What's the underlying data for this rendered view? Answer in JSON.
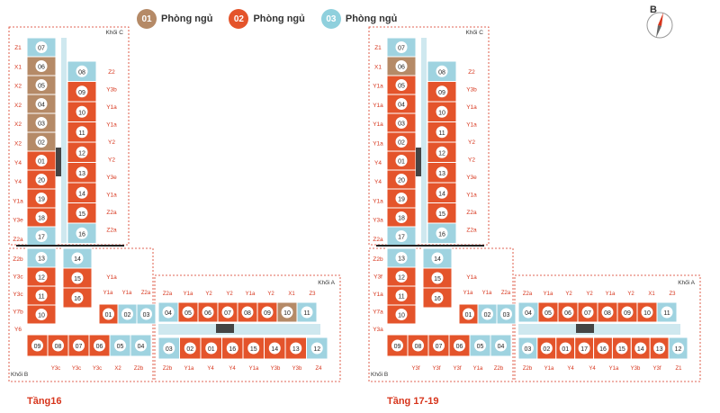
{
  "legend": [
    {
      "num": "01",
      "label": "Phòng ngủ",
      "color": "#b58a67"
    },
    {
      "num": "02",
      "label": "Phòng ngủ",
      "color": "#e4542b"
    },
    {
      "num": "03",
      "label": "Phòng ngủ",
      "color": "#8fd0dd"
    }
  ],
  "compass": {
    "label": "B"
  },
  "colors": {
    "orange": "#e4542b",
    "brown": "#b58a67",
    "blue": "#9fd3e0",
    "outline": "#d7351c",
    "core": "#444444"
  },
  "floors": [
    {
      "title": "Tầng16",
      "block_labels": {
        "c": "Khối C",
        "a": "Khối A",
        "b": "Khối B"
      },
      "left_labels": [
        "Z1",
        "X1",
        "X2",
        "X2",
        "X2",
        "X2",
        "Y4",
        "Y4",
        "Y1a",
        "Y3e",
        "Z2a",
        "Z2b",
        "Y3c",
        "Y3c",
        "Y7b",
        "Y6"
      ],
      "right_labels": [
        "Z2",
        "Y3b",
        "Y1a",
        "Y1a",
        "Y2",
        "Y2",
        "Y3e",
        "Y1a",
        "Z2a",
        "Z2a",
        "Y1a"
      ],
      "mid_labels": [
        "Y1a",
        "Y1a",
        "Z2a"
      ],
      "top_a_labels": [
        "Z2a",
        "Y1a",
        "Y2",
        "Y2",
        "Y1a",
        "Y2",
        "X1",
        "Z3"
      ],
      "bottom_b_labels": [
        "Y3c",
        "Y3c",
        "Y3c",
        "X2",
        "Z2b"
      ],
      "bottom_a_labels": [
        "Z2b",
        "Y1a",
        "Y4",
        "Y4",
        "Y1a",
        "Y3b",
        "Y3b",
        "Z4"
      ],
      "units_c_left": [
        {
          "n": "07",
          "t": "blue"
        },
        {
          "n": "06",
          "t": "brown"
        },
        {
          "n": "05",
          "t": "brown"
        },
        {
          "n": "04",
          "t": "brown"
        },
        {
          "n": "03",
          "t": "brown"
        },
        {
          "n": "02",
          "t": "brown"
        },
        {
          "n": "01",
          "t": "orange"
        },
        {
          "n": "20",
          "t": "orange"
        },
        {
          "n": "19",
          "t": "orange"
        },
        {
          "n": "18",
          "t": "orange"
        },
        {
          "n": "17",
          "t": "blue"
        }
      ],
      "units_c_right": [
        {
          "n": "08",
          "t": "blue"
        },
        {
          "n": "09",
          "t": "orange"
        },
        {
          "n": "10",
          "t": "orange"
        },
        {
          "n": "11",
          "t": "orange"
        },
        {
          "n": "12",
          "t": "orange"
        },
        {
          "n": "13",
          "t": "orange"
        },
        {
          "n": "14",
          "t": "orange"
        },
        {
          "n": "15",
          "t": "orange"
        },
        {
          "n": "16",
          "t": "blue"
        }
      ],
      "units_b_left": [
        {
          "n": "13",
          "t": "blue"
        },
        {
          "n": "12",
          "t": "orange"
        },
        {
          "n": "11",
          "t": "orange"
        },
        {
          "n": "10",
          "t": "orange"
        }
      ],
      "units_b_right": [
        {
          "n": "14",
          "t": "blue"
        },
        {
          "n": "15",
          "t": "orange"
        },
        {
          "n": "16",
          "t": "orange"
        }
      ],
      "units_b_bottom": [
        {
          "n": "09",
          "t": "orange"
        },
        {
          "n": "08",
          "t": "orange"
        },
        {
          "n": "07",
          "t": "orange"
        },
        {
          "n": "06",
          "t": "orange"
        },
        {
          "n": "05",
          "t": "blue"
        },
        {
          "n": "04",
          "t": "blue"
        }
      ],
      "units_b_mid": [
        {
          "n": "01",
          "t": "orange"
        },
        {
          "n": "02",
          "t": "blue"
        },
        {
          "n": "03",
          "t": "blue"
        }
      ],
      "units_a_top": [
        {
          "n": "04",
          "t": "blue"
        },
        {
          "n": "05",
          "t": "orange"
        },
        {
          "n": "06",
          "t": "orange"
        },
        {
          "n": "07",
          "t": "orange"
        },
        {
          "n": "08",
          "t": "orange"
        },
        {
          "n": "09",
          "t": "orange"
        },
        {
          "n": "10",
          "t": "brown"
        },
        {
          "n": "11",
          "t": "blue"
        }
      ],
      "units_a_bottom": [
        {
          "n": "03",
          "t": "blue"
        },
        {
          "n": "02",
          "t": "orange"
        },
        {
          "n": "01",
          "t": "orange"
        },
        {
          "n": "16",
          "t": "orange"
        },
        {
          "n": "15",
          "t": "orange"
        },
        {
          "n": "14",
          "t": "orange"
        },
        {
          "n": "13",
          "t": "orange"
        },
        {
          "n": "12",
          "t": "blue"
        }
      ]
    },
    {
      "title": "Tầng 17-19",
      "block_labels": {
        "c": "Khối C",
        "a": "Khối A",
        "b": "Khối B"
      },
      "left_labels": [
        "Z1",
        "X1",
        "Y1a",
        "Y1a",
        "Y1a",
        "Y1a",
        "Y4",
        "Y4",
        "Y1a",
        "Y3a",
        "Z2a",
        "Z2b",
        "Y3f",
        "Y1a",
        "Y7a",
        "Y3a"
      ],
      "right_labels": [
        "Z2",
        "Y3b",
        "Y1a",
        "Y1a",
        "Y2",
        "Y2",
        "Y3e",
        "Y1a",
        "Z2a",
        "Z2a",
        "Y1a"
      ],
      "mid_labels": [
        "Y1a",
        "Y1a",
        "Z2a"
      ],
      "top_a_labels": [
        "Z2a",
        "Y1a",
        "Y2",
        "Y2",
        "Y1a",
        "Y2",
        "X1",
        "Z3"
      ],
      "bottom_b_labels": [
        "Y3f",
        "Y3f",
        "Y3f",
        "Y1a",
        "Z2b"
      ],
      "bottom_a_labels": [
        "Z2b",
        "Y1a",
        "Y4",
        "Y4",
        "Y1a",
        "Y3b",
        "Y3f",
        "Z1"
      ],
      "units_c_left": [
        {
          "n": "07",
          "t": "blue"
        },
        {
          "n": "06",
          "t": "brown"
        },
        {
          "n": "05",
          "t": "orange"
        },
        {
          "n": "04",
          "t": "orange"
        },
        {
          "n": "03",
          "t": "orange"
        },
        {
          "n": "02",
          "t": "orange"
        },
        {
          "n": "01",
          "t": "orange"
        },
        {
          "n": "20",
          "t": "orange"
        },
        {
          "n": "19",
          "t": "orange"
        },
        {
          "n": "18",
          "t": "orange"
        },
        {
          "n": "17",
          "t": "blue"
        }
      ],
      "units_c_right": [
        {
          "n": "08",
          "t": "blue"
        },
        {
          "n": "09",
          "t": "orange"
        },
        {
          "n": "10",
          "t": "orange"
        },
        {
          "n": "11",
          "t": "orange"
        },
        {
          "n": "12",
          "t": "orange"
        },
        {
          "n": "13",
          "t": "orange"
        },
        {
          "n": "14",
          "t": "orange"
        },
        {
          "n": "15",
          "t": "orange"
        },
        {
          "n": "16",
          "t": "blue"
        }
      ],
      "units_b_left": [
        {
          "n": "13",
          "t": "blue"
        },
        {
          "n": "12",
          "t": "orange"
        },
        {
          "n": "11",
          "t": "orange"
        },
        {
          "n": "10",
          "t": "orange"
        }
      ],
      "units_b_right": [
        {
          "n": "14",
          "t": "blue"
        },
        {
          "n": "15",
          "t": "orange"
        },
        {
          "n": "16",
          "t": "orange"
        }
      ],
      "units_b_bottom": [
        {
          "n": "09",
          "t": "orange"
        },
        {
          "n": "08",
          "t": "orange"
        },
        {
          "n": "07",
          "t": "orange"
        },
        {
          "n": "06",
          "t": "orange"
        },
        {
          "n": "05",
          "t": "blue"
        },
        {
          "n": "04",
          "t": "blue"
        }
      ],
      "units_b_mid": [
        {
          "n": "01",
          "t": "orange"
        },
        {
          "n": "02",
          "t": "blue"
        },
        {
          "n": "03",
          "t": "blue"
        }
      ],
      "units_a_top": [
        {
          "n": "04",
          "t": "blue"
        },
        {
          "n": "05",
          "t": "orange"
        },
        {
          "n": "06",
          "t": "orange"
        },
        {
          "n": "07",
          "t": "orange"
        },
        {
          "n": "08",
          "t": "orange"
        },
        {
          "n": "09",
          "t": "orange"
        },
        {
          "n": "10",
          "t": "orange"
        },
        {
          "n": "11",
          "t": "blue"
        }
      ],
      "units_a_bottom": [
        {
          "n": "03",
          "t": "blue"
        },
        {
          "n": "02",
          "t": "orange"
        },
        {
          "n": "01",
          "t": "orange"
        },
        {
          "n": "17",
          "t": "orange"
        },
        {
          "n": "16",
          "t": "orange"
        },
        {
          "n": "15",
          "t": "orange"
        },
        {
          "n": "14",
          "t": "orange"
        },
        {
          "n": "13",
          "t": "orange"
        },
        {
          "n": "12",
          "t": "blue"
        }
      ]
    }
  ]
}
